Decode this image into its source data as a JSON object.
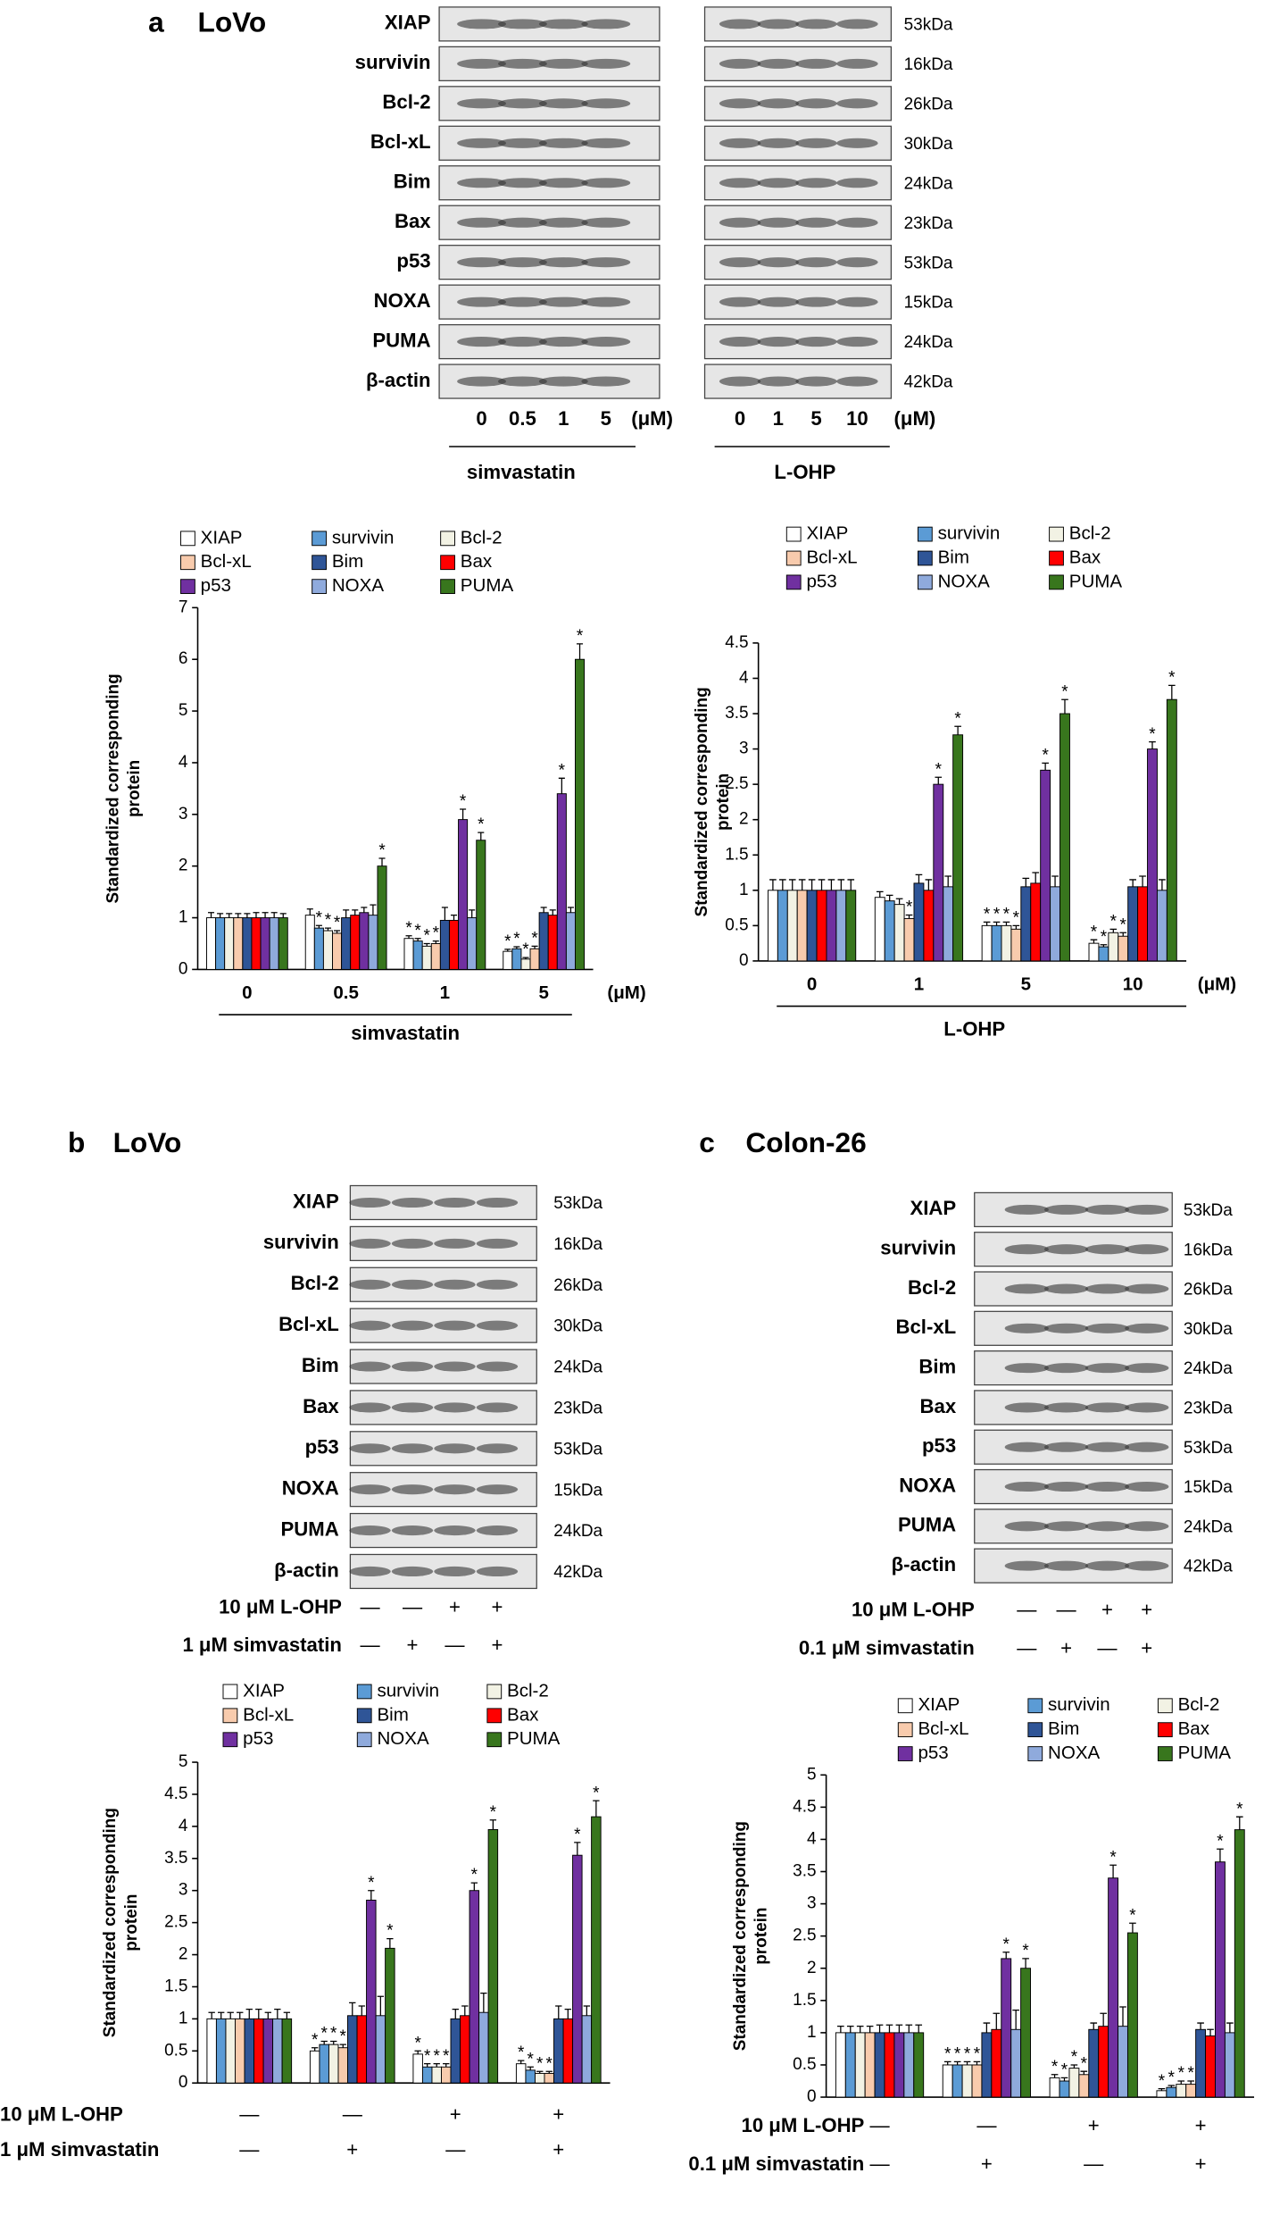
{
  "panels": [
    {
      "letter": "a",
      "cell": "LoVo"
    },
    {
      "letter": "b",
      "cell": "LoVo"
    },
    {
      "letter": "c",
      "cell": "Colon-26"
    }
  ],
  "blots": {
    "a": {
      "proteins": [
        "XIAP",
        "survivin",
        "Bcl-2",
        "Bcl-xL",
        "Bim",
        "Bax",
        "p53",
        "NOXA",
        "PUMA",
        "β-actin"
      ],
      "kda": [
        "53kDa",
        "16kDa",
        "26kDa",
        "30kDa",
        "24kDa",
        "23kDa",
        "53kDa",
        "15kDa",
        "24kDa",
        "42kDa"
      ],
      "groups": [
        {
          "name": "simvastatin",
          "doses": [
            "0",
            "0.5",
            "1",
            "5"
          ],
          "unit": "(μM)"
        },
        {
          "name": "L-OHP",
          "doses": [
            "0",
            "1",
            "5",
            "10"
          ],
          "unit": "(μM)"
        }
      ]
    },
    "b": {
      "proteins": [
        "XIAP",
        "survivin",
        "Bcl-2",
        "Bcl-xL",
        "Bim",
        "Bax",
        "p53",
        "NOXA",
        "PUMA",
        "β-actin"
      ],
      "kda": [
        "53kDa",
        "16kDa",
        "26kDa",
        "30kDa",
        "24kDa",
        "23kDa",
        "53kDa",
        "15kDa",
        "24kDa",
        "42kDa"
      ],
      "treatments": [
        {
          "label": "10 μM L-OHP",
          "signs": [
            "—",
            "—",
            "+",
            "+"
          ]
        },
        {
          "label": "1 μM simvastatin",
          "signs": [
            "—",
            "+",
            "—",
            "+"
          ]
        }
      ]
    },
    "c": {
      "proteins": [
        "XIAP",
        "survivin",
        "Bcl-2",
        "Bcl-xL",
        "Bim",
        "Bax",
        "p53",
        "NOXA",
        "PUMA",
        "β-actin"
      ],
      "kda": [
        "53kDa",
        "16kDa",
        "26kDa",
        "30kDa",
        "24kDa",
        "23kDa",
        "53kDa",
        "15kDa",
        "24kDa",
        "42kDa"
      ],
      "treatments": [
        {
          "label": "10 μM L-OHP",
          "signs": [
            "—",
            "—",
            "+",
            "+"
          ]
        },
        {
          "label": "0.1 μM simvastatin",
          "signs": [
            "—",
            "+",
            "—",
            "+"
          ]
        }
      ]
    }
  },
  "chart_data": [
    {
      "type": "bar",
      "ylabel": [
        "Standardized corresponding",
        "protein"
      ],
      "categories": [
        "0",
        "0.5",
        "1",
        "5"
      ],
      "xlabel": "simvastatin",
      "xunit": "(μM)",
      "ylim": [
        0,
        7
      ],
      "yticks": [
        0,
        1,
        2,
        3,
        4,
        5,
        6,
        7
      ],
      "series": [
        {
          "name": "XIAP",
          "color": "#ffffff",
          "values": [
            1,
            1.05,
            0.6,
            0.35
          ],
          "errors": [
            0.1,
            0.12,
            0.05,
            0.04
          ],
          "sig": [
            null,
            null,
            "*",
            "*"
          ]
        },
        {
          "name": "survivin",
          "color": "#5b9bd5",
          "values": [
            1,
            0.8,
            0.55,
            0.4
          ],
          "errors": [
            0.08,
            0.05,
            0.05,
            0.04
          ],
          "sig": [
            null,
            "*",
            "*",
            "*"
          ]
        },
        {
          "name": "Bcl-2",
          "color": "#f2f2e4",
          "values": [
            1,
            0.75,
            0.45,
            0.2
          ],
          "errors": [
            0.08,
            0.05,
            0.05,
            0.03
          ],
          "sig": [
            null,
            "*",
            "*",
            "*"
          ]
        },
        {
          "name": "Bcl-xL",
          "color": "#f8cbad",
          "values": [
            1,
            0.7,
            0.5,
            0.4
          ],
          "errors": [
            0.08,
            0.05,
            0.05,
            0.05
          ],
          "sig": [
            null,
            "*",
            "*",
            "*"
          ]
        },
        {
          "name": "Bim",
          "color": "#2f5597",
          "values": [
            1,
            1.0,
            0.95,
            1.1
          ],
          "errors": [
            0.08,
            0.15,
            0.25,
            0.1
          ],
          "sig": [
            null,
            null,
            null,
            null
          ]
        },
        {
          "name": "Bax",
          "color": "#ff0000",
          "values": [
            1,
            1.05,
            0.95,
            1.05
          ],
          "errors": [
            0.1,
            0.1,
            0.1,
            0.1
          ],
          "sig": [
            null,
            null,
            null,
            null
          ]
        },
        {
          "name": "p53",
          "color": "#7030a0",
          "values": [
            1,
            1.1,
            2.9,
            3.4
          ],
          "errors": [
            0.1,
            0.1,
            0.2,
            0.3
          ],
          "sig": [
            null,
            null,
            "*",
            "*"
          ]
        },
        {
          "name": "NOXA",
          "color": "#8faadc",
          "values": [
            1,
            1.05,
            1.0,
            1.1
          ],
          "errors": [
            0.1,
            0.2,
            0.15,
            0.1
          ],
          "sig": [
            null,
            null,
            null,
            null
          ]
        },
        {
          "name": "PUMA",
          "color": "#38761d",
          "values": [
            1,
            2.0,
            2.5,
            6.0
          ],
          "errors": [
            0.08,
            0.15,
            0.15,
            0.3
          ],
          "sig": [
            null,
            "*",
            "*",
            "*"
          ]
        }
      ]
    },
    {
      "type": "bar",
      "ylabel": [
        "Standardized corresponding",
        "protein"
      ],
      "categories": [
        "0",
        "1",
        "5",
        "10"
      ],
      "xlabel": "L-OHP",
      "xunit": "(μM)",
      "ylim": [
        0,
        4.5
      ],
      "yticks": [
        0,
        0.5,
        1,
        1.5,
        2,
        2.5,
        3,
        3.5,
        4,
        4.5
      ],
      "series": [
        {
          "name": "XIAP",
          "color": "#ffffff",
          "values": [
            1,
            0.9,
            0.5,
            0.25
          ],
          "errors": [
            0.15,
            0.08,
            0.05,
            0.05
          ],
          "sig": [
            null,
            null,
            "*",
            "*"
          ]
        },
        {
          "name": "survivin",
          "color": "#5b9bd5",
          "values": [
            1,
            0.85,
            0.5,
            0.2
          ],
          "errors": [
            0.15,
            0.08,
            0.05,
            0.03
          ],
          "sig": [
            null,
            null,
            "*",
            "*"
          ]
        },
        {
          "name": "Bcl-2",
          "color": "#f2f2e4",
          "values": [
            1,
            0.8,
            0.5,
            0.4
          ],
          "errors": [
            0.15,
            0.08,
            0.05,
            0.05
          ],
          "sig": [
            null,
            null,
            "*",
            "*"
          ]
        },
        {
          "name": "Bcl-xL",
          "color": "#f8cbad",
          "values": [
            1,
            0.6,
            0.45,
            0.35
          ],
          "errors": [
            0.15,
            0.05,
            0.05,
            0.05
          ],
          "sig": [
            null,
            "*",
            "*",
            "*"
          ]
        },
        {
          "name": "Bim",
          "color": "#2f5597",
          "values": [
            1,
            1.1,
            1.05,
            1.05
          ],
          "errors": [
            0.15,
            0.12,
            0.12,
            0.1
          ],
          "sig": [
            null,
            null,
            null,
            null
          ]
        },
        {
          "name": "Bax",
          "color": "#ff0000",
          "values": [
            1,
            1.0,
            1.1,
            1.05
          ],
          "errors": [
            0.15,
            0.15,
            0.15,
            0.15
          ],
          "sig": [
            null,
            null,
            null,
            null
          ]
        },
        {
          "name": "p53",
          "color": "#7030a0",
          "values": [
            1,
            2.5,
            2.7,
            3.0
          ],
          "errors": [
            0.15,
            0.1,
            0.1,
            0.1
          ],
          "sig": [
            null,
            "*",
            "*",
            "*"
          ]
        },
        {
          "name": "NOXA",
          "color": "#8faadc",
          "values": [
            1,
            1.05,
            1.05,
            1.0
          ],
          "errors": [
            0.15,
            0.15,
            0.15,
            0.15
          ],
          "sig": [
            null,
            null,
            null,
            null
          ]
        },
        {
          "name": "PUMA",
          "color": "#38761d",
          "values": [
            1,
            3.2,
            3.5,
            3.7
          ],
          "errors": [
            0.15,
            0.12,
            0.2,
            0.2
          ],
          "sig": [
            null,
            "*",
            "*",
            "*"
          ]
        }
      ]
    },
    {
      "type": "bar",
      "ylabel": [
        "Standardized corresponding",
        "protein"
      ],
      "categories": [
        null,
        null,
        null,
        null
      ],
      "x_rows": [
        {
          "label": "10 μM L-OHP",
          "signs": [
            "—",
            "—",
            "+",
            "+"
          ]
        },
        {
          "label": "1 μM simvastatin",
          "signs": [
            "—",
            "+",
            "—",
            "+"
          ]
        }
      ],
      "ylim": [
        0,
        5
      ],
      "yticks": [
        0,
        0.5,
        1,
        1.5,
        2,
        2.5,
        3,
        3.5,
        4,
        4.5,
        5
      ],
      "series": [
        {
          "name": "XIAP",
          "color": "#ffffff",
          "values": [
            1,
            0.5,
            0.45,
            0.3
          ],
          "errors": [
            0.1,
            0.05,
            0.05,
            0.05
          ],
          "sig": [
            null,
            "*",
            "*",
            "*"
          ]
        },
        {
          "name": "survivin",
          "color": "#5b9bd5",
          "values": [
            1,
            0.6,
            0.25,
            0.2
          ],
          "errors": [
            0.1,
            0.05,
            0.05,
            0.05
          ],
          "sig": [
            null,
            "*",
            "*",
            "*"
          ]
        },
        {
          "name": "Bcl-2",
          "color": "#f2f2e4",
          "values": [
            1,
            0.6,
            0.25,
            0.15
          ],
          "errors": [
            0.1,
            0.05,
            0.05,
            0.03
          ],
          "sig": [
            null,
            "*",
            "*",
            "*"
          ]
        },
        {
          "name": "Bcl-xL",
          "color": "#f8cbad",
          "values": [
            1,
            0.55,
            0.25,
            0.15
          ],
          "errors": [
            0.1,
            0.05,
            0.05,
            0.03
          ],
          "sig": [
            null,
            "*",
            "*",
            "*"
          ]
        },
        {
          "name": "Bim",
          "color": "#2f5597",
          "values": [
            1,
            1.05,
            1.0,
            1.0
          ],
          "errors": [
            0.15,
            0.2,
            0.15,
            0.2
          ],
          "sig": [
            null,
            null,
            null,
            null
          ]
        },
        {
          "name": "Bax",
          "color": "#ff0000",
          "values": [
            1,
            1.05,
            1.05,
            1.0
          ],
          "errors": [
            0.15,
            0.15,
            0.15,
            0.15
          ],
          "sig": [
            null,
            null,
            null,
            null
          ]
        },
        {
          "name": "p53",
          "color": "#7030a0",
          "values": [
            1,
            2.85,
            3.0,
            3.55
          ],
          "errors": [
            0.1,
            0.15,
            0.12,
            0.2
          ],
          "sig": [
            null,
            "*",
            "*",
            "*"
          ]
        },
        {
          "name": "NOXA",
          "color": "#8faadc",
          "values": [
            1,
            1.05,
            1.1,
            1.05
          ],
          "errors": [
            0.15,
            0.3,
            0.3,
            0.15
          ],
          "sig": [
            null,
            null,
            null,
            null
          ]
        },
        {
          "name": "PUMA",
          "color": "#38761d",
          "values": [
            1,
            2.1,
            3.95,
            4.15
          ],
          "errors": [
            0.1,
            0.15,
            0.15,
            0.25
          ],
          "sig": [
            null,
            "*",
            "*",
            "*"
          ]
        }
      ]
    },
    {
      "type": "bar",
      "ylabel": [
        "Standardized corresponding",
        "protein"
      ],
      "categories": [
        null,
        null,
        null,
        null
      ],
      "x_rows": [
        {
          "label": "10 μM L-OHP",
          "signs": [
            "—",
            "—",
            "+",
            "+"
          ]
        },
        {
          "label": "0.1 μM simvastatin",
          "signs": [
            "—",
            "+",
            "—",
            "+"
          ]
        }
      ],
      "ylim": [
        0,
        5
      ],
      "yticks": [
        0,
        0.5,
        1,
        1.5,
        2,
        2.5,
        3,
        3.5,
        4,
        4.5,
        5
      ],
      "series": [
        {
          "name": "XIAP",
          "color": "#ffffff",
          "values": [
            1,
            0.5,
            0.3,
            0.1
          ],
          "errors": [
            0.1,
            0.05,
            0.05,
            0.03
          ],
          "sig": [
            null,
            "*",
            "*",
            "*"
          ]
        },
        {
          "name": "survivin",
          "color": "#5b9bd5",
          "values": [
            1,
            0.5,
            0.25,
            0.15
          ],
          "errors": [
            0.1,
            0.05,
            0.05,
            0.03
          ],
          "sig": [
            null,
            "*",
            "*",
            "*"
          ]
        },
        {
          "name": "Bcl-2",
          "color": "#f2f2e4",
          "values": [
            1,
            0.5,
            0.45,
            0.2
          ],
          "errors": [
            0.1,
            0.05,
            0.05,
            0.05
          ],
          "sig": [
            null,
            "*",
            "*",
            "*"
          ]
        },
        {
          "name": "Bcl-xL",
          "color": "#f8cbad",
          "values": [
            1,
            0.5,
            0.35,
            0.2
          ],
          "errors": [
            0.1,
            0.05,
            0.05,
            0.05
          ],
          "sig": [
            null,
            "*",
            "*",
            "*"
          ]
        },
        {
          "name": "Bim",
          "color": "#2f5597",
          "values": [
            1,
            1.0,
            1.05,
            1.05
          ],
          "errors": [
            0.12,
            0.15,
            0.1,
            0.1
          ],
          "sig": [
            null,
            null,
            null,
            null
          ]
        },
        {
          "name": "Bax",
          "color": "#ff0000",
          "values": [
            1,
            1.05,
            1.1,
            0.95
          ],
          "errors": [
            0.12,
            0.25,
            0.2,
            0.1
          ],
          "sig": [
            null,
            null,
            null,
            null
          ]
        },
        {
          "name": "p53",
          "color": "#7030a0",
          "values": [
            1,
            2.15,
            3.4,
            3.65
          ],
          "errors": [
            0.12,
            0.1,
            0.2,
            0.2
          ],
          "sig": [
            null,
            "*",
            "*",
            "*"
          ]
        },
        {
          "name": "NOXA",
          "color": "#8faadc",
          "values": [
            1,
            1.05,
            1.1,
            1.0
          ],
          "errors": [
            0.12,
            0.3,
            0.3,
            0.15
          ],
          "sig": [
            null,
            null,
            null,
            null
          ]
        },
        {
          "name": "PUMA",
          "color": "#38761d",
          "values": [
            1,
            2.0,
            2.55,
            4.15
          ],
          "errors": [
            0.12,
            0.15,
            0.15,
            0.2
          ],
          "sig": [
            null,
            "*",
            "*",
            "*"
          ]
        }
      ]
    }
  ]
}
